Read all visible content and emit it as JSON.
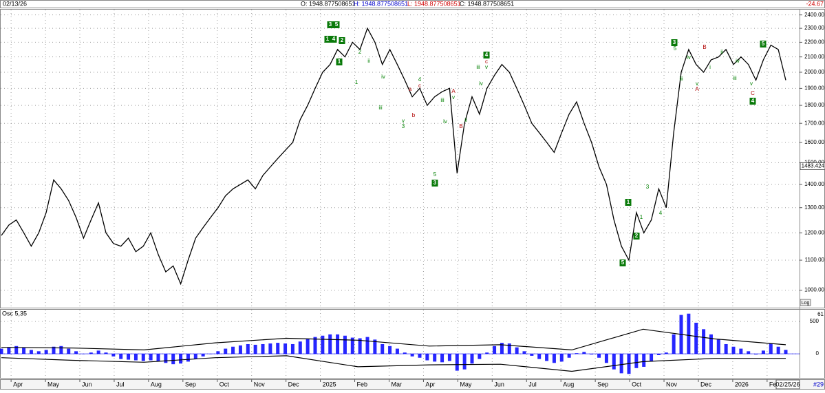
{
  "header": {
    "date": "02/13/26",
    "open": "O: 1948.877508651",
    "high": "H: 1948.877508651",
    "low": "L: 1948.877508651",
    "close": "C: 1948.877508651",
    "change": "-24.67"
  },
  "chart_data": [
    {
      "type": "line",
      "log_scale": true,
      "grid": true,
      "series": [
        {
          "color": "#000000",
          "values": [
            1190,
            1230,
            1250,
            1200,
            1150,
            1200,
            1280,
            1420,
            1380,
            1330,
            1260,
            1180,
            1250,
            1320,
            1200,
            1160,
            1150,
            1180,
            1130,
            1150,
            1200,
            1120,
            1060,
            1080,
            1020,
            1100,
            1180,
            1220,
            1260,
            1300,
            1350,
            1380,
            1400,
            1420,
            1380,
            1440,
            1480,
            1520,
            1560,
            1600,
            1720,
            1800,
            1900,
            2000,
            2050,
            2150,
            2100,
            2200,
            2150,
            2300,
            2200,
            2050,
            2150,
            2050,
            1950,
            1850,
            1900,
            1800,
            1850,
            1880,
            1900,
            1450,
            1700,
            1850,
            1750,
            1900,
            1980,
            2050,
            2000,
            1900,
            1800,
            1700,
            1650,
            1600,
            1550,
            1650,
            1750,
            1820,
            1700,
            1600,
            1480,
            1400,
            1250,
            1150,
            1100,
            1280,
            1200,
            1250,
            1380,
            1300,
            1650,
            2000,
            2150,
            2050,
            2000,
            2080,
            2100,
            2150,
            2050,
            2100,
            2050,
            1950,
            2080,
            2180,
            2150,
            1950
          ]
        }
      ],
      "ylim": [
        950,
        2430
      ],
      "yticks": [
        {
          "value": 1000,
          "label": "1000.00"
        },
        {
          "value": 1100,
          "label": "1100.00"
        },
        {
          "value": 1200,
          "label": "1200.00"
        },
        {
          "value": 1300,
          "label": "1300.00"
        },
        {
          "value": 1400,
          "label": "1400.00"
        },
        {
          "value": 1500,
          "label": "1500.00"
        },
        {
          "value": 1600,
          "label": "1600.00"
        },
        {
          "value": 1700,
          "label": "1700.00"
        },
        {
          "value": 1800,
          "label": "1800.00"
        },
        {
          "value": 1900,
          "label": "1900.00"
        },
        {
          "value": 2000,
          "label": "2000.00"
        },
        {
          "value": 2100,
          "label": "2100.00"
        },
        {
          "value": 2200,
          "label": "2200.00"
        },
        {
          "value": 2300,
          "label": "2300.00"
        },
        {
          "value": 2400,
          "label": "2400.00"
        }
      ],
      "price_marker": 1483.424,
      "scale_button": "Log",
      "annotations": [
        {
          "text": "3",
          "boxed": true
        },
        {
          "text": "5",
          "boxed": true
        },
        {
          "text": "1",
          "boxed": true
        },
        {
          "text": "4",
          "boxed": true
        },
        {
          "text": "2",
          "boxed": true
        },
        {
          "text": "1",
          "boxed": true
        },
        {
          "text": "2",
          "color": "#008000"
        },
        {
          "text": "ii",
          "color": "#008000"
        },
        {
          "text": "1",
          "color": "#008000"
        },
        {
          "text": "iv",
          "color": "#008000"
        },
        {
          "text": "iii",
          "color": "#008000"
        },
        {
          "text": "a",
          "color": "#b00000"
        },
        {
          "text": "4",
          "color": "#008000"
        },
        {
          "text": "c",
          "color": "#b00000"
        },
        {
          "text": "b",
          "color": "#b00000"
        },
        {
          "text": "v",
          "color": "#008000"
        },
        {
          "text": "3",
          "color": "#008000"
        },
        {
          "text": "5",
          "color": "#008000"
        },
        {
          "text": "3",
          "boxed": true
        },
        {
          "text": "iii",
          "color": "#008000"
        },
        {
          "text": "iv",
          "color": "#008000"
        },
        {
          "text": "A",
          "color": "#b00000"
        },
        {
          "text": "v",
          "color": "#008000"
        },
        {
          "text": "B",
          "color": "#b00000"
        },
        {
          "text": "ii",
          "color": "#008000"
        },
        {
          "text": "iii",
          "color": "#008000"
        },
        {
          "text": "4",
          "boxed": true
        },
        {
          "text": "c",
          "color": "#b00000"
        },
        {
          "text": "v",
          "color": "#008000"
        },
        {
          "text": "iv",
          "color": "#008000"
        },
        {
          "text": "1",
          "boxed": true
        },
        {
          "text": "2",
          "boxed": true
        },
        {
          "text": "5",
          "boxed": true
        },
        {
          "text": "1",
          "color": "#008000"
        },
        {
          "text": "3",
          "color": "#008000"
        },
        {
          "text": "4",
          "color": "#008000"
        },
        {
          "text": "3",
          "boxed": true
        },
        {
          "text": "5",
          "color": "#008000"
        },
        {
          "text": "iii",
          "color": "#008000"
        },
        {
          "text": "iv",
          "color": "#008000"
        },
        {
          "text": "v",
          "color": "#008000"
        },
        {
          "text": "A",
          "color": "#b00000"
        },
        {
          "text": "B",
          "color": "#b00000"
        },
        {
          "text": "i",
          "color": "#008000"
        },
        {
          "text": "ii",
          "color": "#008000"
        },
        {
          "text": "iv",
          "color": "#008000"
        },
        {
          "text": "iii",
          "color": "#008000"
        },
        {
          "text": "v",
          "color": "#008000"
        },
        {
          "text": "C",
          "color": "#b00000"
        },
        {
          "text": "4",
          "boxed": true
        },
        {
          "text": "5",
          "boxed": true
        }
      ]
    },
    {
      "type": "bar",
      "title": "Osc 5,35",
      "color": "#0000ff",
      "grid": true,
      "values": [
        80,
        100,
        120,
        100,
        60,
        40,
        60,
        110,
        120,
        80,
        40,
        0,
        20,
        50,
        20,
        -40,
        -80,
        -90,
        -100,
        -110,
        -100,
        -120,
        -140,
        -160,
        -150,
        -120,
        -80,
        -40,
        0,
        40,
        80,
        110,
        130,
        150,
        140,
        150,
        160,
        170,
        160,
        150,
        190,
        230,
        260,
        280,
        300,
        300,
        280,
        250,
        240,
        260,
        220,
        150,
        120,
        80,
        20,
        -40,
        -60,
        -100,
        -120,
        -130,
        -110,
        -260,
        -240,
        -150,
        -80,
        20,
        120,
        170,
        160,
        100,
        40,
        -30,
        -80,
        -110,
        -140,
        -120,
        -60,
        10,
        30,
        -10,
        -60,
        -140,
        -240,
        -300,
        -310,
        -220,
        -200,
        -120,
        -20,
        20,
        300,
        600,
        620,
        480,
        380,
        300,
        220,
        150,
        110,
        80,
        40,
        -10,
        50,
        160,
        110,
        61
      ],
      "bands": [
        {
          "color": "#000000",
          "values": [
            100,
            90,
            60,
            170,
            240,
            210,
            120,
            140,
            60,
            380,
            230,
            140
          ]
        },
        {
          "color": "#000000",
          "values": [
            -60,
            -100,
            -130,
            -60,
            -30,
            -200,
            -170,
            -160,
            -270,
            -120,
            -70,
            -70
          ]
        }
      ],
      "ylim": [
        -360,
        670
      ],
      "yticks": [
        0,
        500
      ],
      "last_value": 61,
      "xtick_labels": [
        "Apr",
        "May",
        "Jun",
        "Jul",
        "Aug",
        "Sep",
        "Oct",
        "Nov",
        "Dec",
        "2025",
        "Feb",
        "Mar",
        "Apr",
        "May",
        "Jun",
        "Jul",
        "Aug",
        "Sep",
        "Oct",
        "Nov",
        "Dec",
        "2026",
        "Fe"
      ],
      "cursor_date": "02/25/26",
      "page_number": "#29"
    }
  ]
}
